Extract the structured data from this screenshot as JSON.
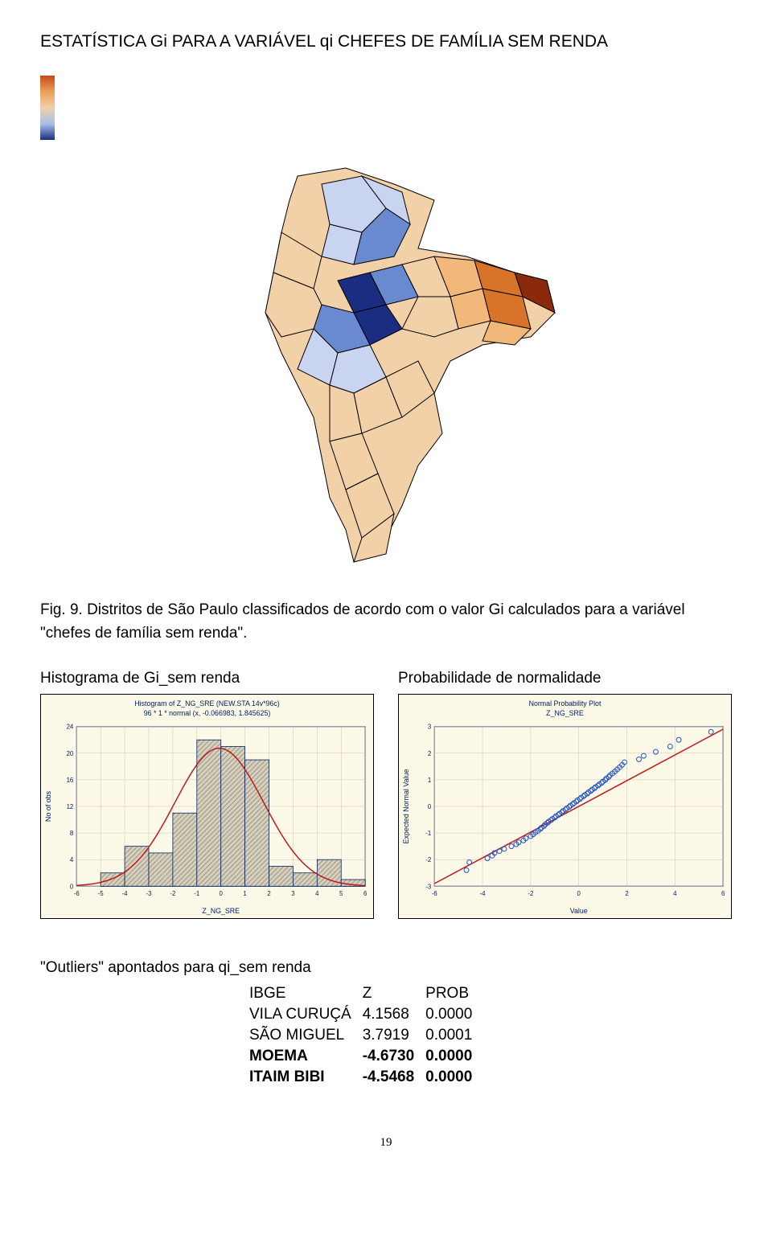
{
  "page_title": "ESTATÍSTICA Gi PARA A VARIÁVEL qi  CHEFES DE FAMÍLIA SEM RENDA",
  "figure_caption_prefix": "Fig. 9. ",
  "figure_caption_body": "Distritos de São Paulo classificados de acordo com o valor Gi calculados para a variável \"chefes de família sem renda\".",
  "map": {
    "background_color": "#f2d0a8",
    "stroke": "#000000",
    "colors": {
      "high_pos": "#8b2a0a",
      "pos": "#d8742a",
      "light_pos": "#f2b87a",
      "neutral": "#f2d0a8",
      "light_neg": "#c8d4f0",
      "neg": "#6a8ad0",
      "high_neg": "#1a2d80"
    }
  },
  "histogram": {
    "type": "histogram",
    "heading": "Histograma de Gi_sem renda",
    "title_line1": "Histogram of Z_NG_SRE (NEW.STA 14v*96c)",
    "title_line2": "96 * 1 * normal (x, -0.066983, 1.845625)",
    "xlabel": "Z_NG_SRE",
    "ylabel": "No of obs",
    "xlim": [
      -6,
      6
    ],
    "ylim": [
      0,
      24
    ],
    "xtick_step": 1,
    "ytick_step": 4,
    "bin_edges": [
      -6,
      -5,
      -4,
      -3,
      -2,
      -1,
      0,
      1,
      2,
      3,
      4,
      5,
      6
    ],
    "bin_counts": [
      0,
      2,
      6,
      5,
      11,
      22,
      21,
      19,
      3,
      2,
      4,
      1
    ],
    "bar_color": "#d8d0b8",
    "bar_pattern": "diagonal-hatch",
    "curve_color": "#c01818",
    "background_color": "#fdf9e8",
    "text_color": "#002060",
    "title_fontsize": 9,
    "axis_fontsize": 9,
    "tick_fontsize": 8
  },
  "qqplot": {
    "type": "qq",
    "heading": "Probabilidade de normalidade",
    "title_line1": "Normal Probability Plot",
    "title_line2": "Z_NG_SRE",
    "xlabel": "Value",
    "ylabel": "Expected Normal Value",
    "xlim": [
      -6,
      6
    ],
    "ylim": [
      -3,
      3
    ],
    "xtick_step": 2,
    "ytick_step": 1,
    "line_color": "#c01818",
    "marker_style": "circle-open",
    "marker_color": "#2050c0",
    "marker_size": 3,
    "background_color": "#fdf9e8",
    "text_color": "#002060",
    "title_fontsize": 9,
    "axis_fontsize": 9,
    "tick_fontsize": 8,
    "points": [
      [
        -4.67,
        -2.4
      ],
      [
        -4.55,
        -2.1
      ],
      [
        -3.8,
        -1.95
      ],
      [
        -3.6,
        -1.85
      ],
      [
        -3.5,
        -1.75
      ],
      [
        -3.3,
        -1.68
      ],
      [
        -3.1,
        -1.6
      ],
      [
        -2.8,
        -1.5
      ],
      [
        -2.6,
        -1.42
      ],
      [
        -2.5,
        -1.35
      ],
      [
        -2.3,
        -1.28
      ],
      [
        -2.2,
        -1.2
      ],
      [
        -2.0,
        -1.12
      ],
      [
        -1.9,
        -1.05
      ],
      [
        -1.8,
        -0.98
      ],
      [
        -1.7,
        -0.92
      ],
      [
        -1.6,
        -0.85
      ],
      [
        -1.55,
        -0.8
      ],
      [
        -1.45,
        -0.74
      ],
      [
        -1.4,
        -0.68
      ],
      [
        -1.3,
        -0.62
      ],
      [
        -1.25,
        -0.57
      ],
      [
        -1.15,
        -0.52
      ],
      [
        -1.1,
        -0.47
      ],
      [
        -1.0,
        -0.42
      ],
      [
        -0.95,
        -0.37
      ],
      [
        -0.85,
        -0.32
      ],
      [
        -0.8,
        -0.27
      ],
      [
        -0.7,
        -0.22
      ],
      [
        -0.65,
        -0.17
      ],
      [
        -0.55,
        -0.12
      ],
      [
        -0.5,
        -0.07
      ],
      [
        -0.4,
        -0.02
      ],
      [
        -0.35,
        0.03
      ],
      [
        -0.25,
        0.08
      ],
      [
        -0.2,
        0.13
      ],
      [
        -0.1,
        0.18
      ],
      [
        -0.05,
        0.23
      ],
      [
        0.05,
        0.28
      ],
      [
        0.1,
        0.33
      ],
      [
        0.2,
        0.38
      ],
      [
        0.25,
        0.43
      ],
      [
        0.35,
        0.48
      ],
      [
        0.4,
        0.53
      ],
      [
        0.5,
        0.58
      ],
      [
        0.55,
        0.63
      ],
      [
        0.65,
        0.68
      ],
      [
        0.7,
        0.73
      ],
      [
        0.8,
        0.78
      ],
      [
        0.85,
        0.83
      ],
      [
        0.95,
        0.88
      ],
      [
        1.0,
        0.93
      ],
      [
        1.1,
        0.99
      ],
      [
        1.15,
        1.05
      ],
      [
        1.25,
        1.11
      ],
      [
        1.3,
        1.17
      ],
      [
        1.4,
        1.24
      ],
      [
        1.5,
        1.31
      ],
      [
        1.6,
        1.39
      ],
      [
        1.7,
        1.47
      ],
      [
        1.8,
        1.56
      ],
      [
        1.9,
        1.66
      ],
      [
        2.5,
        1.77
      ],
      [
        2.7,
        1.9
      ],
      [
        3.2,
        2.05
      ],
      [
        3.8,
        2.25
      ],
      [
        4.16,
        2.5
      ],
      [
        5.5,
        2.8
      ]
    ]
  },
  "outliers": {
    "heading": "\"Outliers\" apontados para qi_sem renda",
    "columns": [
      "IBGE",
      "Z",
      "PROB"
    ],
    "rows": [
      {
        "name": "VILA CURUÇÁ",
        "z": "4.1568",
        "p": "0.0000",
        "bold": false
      },
      {
        "name": "SÃO MIGUEL",
        "z": "3.7919",
        "p": "0.0001",
        "bold": false
      },
      {
        "name": " MOEMA",
        "z": "-4.6730",
        "p": "0.0000",
        "bold": true
      },
      {
        "name": "ITAIM BIBI",
        "z": "-4.5468",
        "p": "0.0000",
        "bold": true
      }
    ]
  },
  "page_number": "19"
}
